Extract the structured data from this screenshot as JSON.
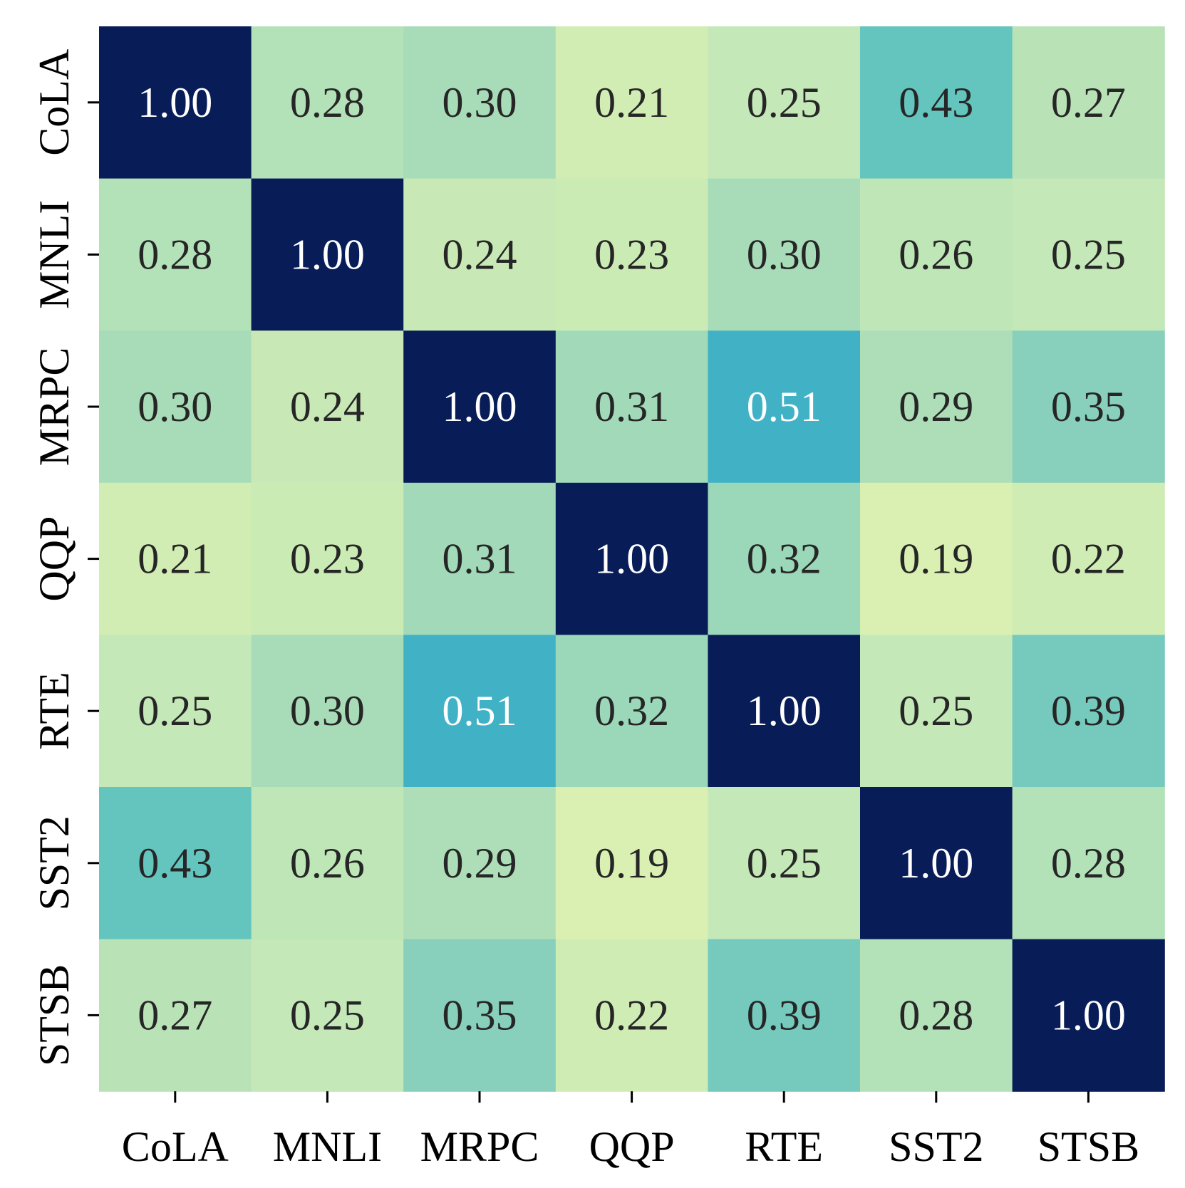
{
  "chart_data": {
    "type": "heatmap",
    "title": "",
    "xlabel": "",
    "ylabel": "",
    "x_categories": [
      "CoLA",
      "MNLI",
      "MRPC",
      "QQP",
      "RTE",
      "SST2",
      "STSB"
    ],
    "y_categories": [
      "CoLA",
      "MNLI",
      "MRPC",
      "QQP",
      "RTE",
      "SST2",
      "STSB"
    ],
    "value_format": "0.00",
    "colorbar": false,
    "values": [
      [
        1.0,
        0.28,
        0.3,
        0.21,
        0.25,
        0.43,
        0.27
      ],
      [
        0.28,
        1.0,
        0.24,
        0.23,
        0.3,
        0.26,
        0.25
      ],
      [
        0.3,
        0.24,
        1.0,
        0.31,
        0.51,
        0.29,
        0.35
      ],
      [
        0.21,
        0.23,
        0.31,
        1.0,
        0.32,
        0.19,
        0.22
      ],
      [
        0.25,
        0.3,
        0.51,
        0.32,
        1.0,
        0.25,
        0.39
      ],
      [
        0.43,
        0.26,
        0.29,
        0.19,
        0.25,
        1.0,
        0.28
      ],
      [
        0.27,
        0.25,
        0.35,
        0.22,
        0.39,
        0.28,
        1.0
      ]
    ],
    "colormap": {
      "name": "YlGnBu",
      "stops": [
        [
          0.19,
          "#d9f0b2"
        ],
        [
          0.25,
          "#c4e8b7"
        ],
        [
          0.3,
          "#a8dcb8"
        ],
        [
          0.35,
          "#88d0bb"
        ],
        [
          0.43,
          "#64c4be"
        ],
        [
          0.51,
          "#41b2c6"
        ],
        [
          0.75,
          "#2166ab"
        ],
        [
          1.0,
          "#081c57"
        ]
      ]
    },
    "label_colors": {
      "dark": "#262626",
      "light": "#ffffff",
      "light_threshold": 0.5
    },
    "axis_color": "#000000"
  }
}
